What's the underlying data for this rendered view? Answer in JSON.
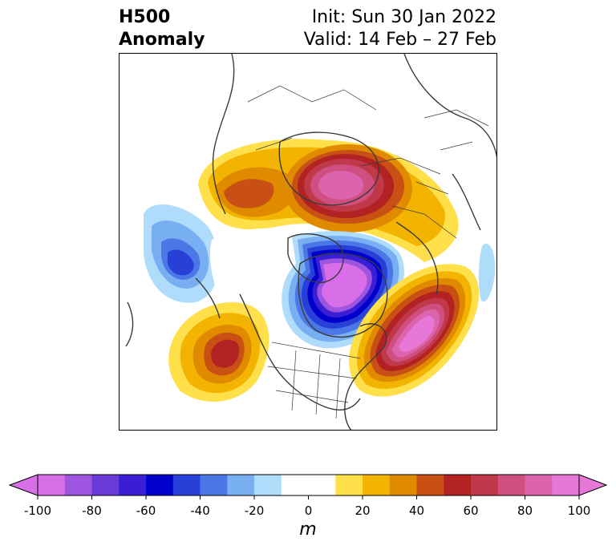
{
  "header": {
    "title_line1": "H500",
    "title_line2": "Anomaly",
    "init_text": "Init: Sun 30 Jan 2022",
    "valid_text": "Valid: 14 Feb – 27 Feb"
  },
  "colorbar": {
    "unit": "m",
    "ticks": [
      "-100",
      "-80",
      "-60",
      "-40",
      "-20",
      "0",
      "20",
      "40",
      "60",
      "80",
      "100"
    ],
    "colors": [
      "#d96fe8",
      "#9d55e0",
      "#6a3ad8",
      "#3a1ed4",
      "#0000cc",
      "#2840d8",
      "#4b78e6",
      "#78aef2",
      "#aedcfa",
      "#ffffff",
      "#ffffff",
      "#ffe04a",
      "#f2b400",
      "#e08a00",
      "#c85014",
      "#b22222",
      "#c0394a",
      "#cf4f80",
      "#dc64ac",
      "#e878d8"
    ]
  },
  "map": {
    "anomaly_colors": {
      "neg_1": "#aedcfa",
      "neg_2": "#78aef2",
      "neg_3": "#4b78e6",
      "neg_4": "#2840d8",
      "neg_5": "#0000cc",
      "neg_6": "#3a1ed4",
      "neg_7": "#6a3ad8",
      "neg_8": "#9d55e0",
      "neg_9": "#d96fe8",
      "pos_1": "#ffe04a",
      "pos_2": "#f2b400",
      "pos_3": "#e08a00",
      "pos_4": "#c85014",
      "pos_5": "#b22222",
      "pos_6": "#c0394a",
      "pos_7": "#cf4f80",
      "pos_8": "#dc64ac",
      "pos_9": "#e878d8"
    }
  }
}
